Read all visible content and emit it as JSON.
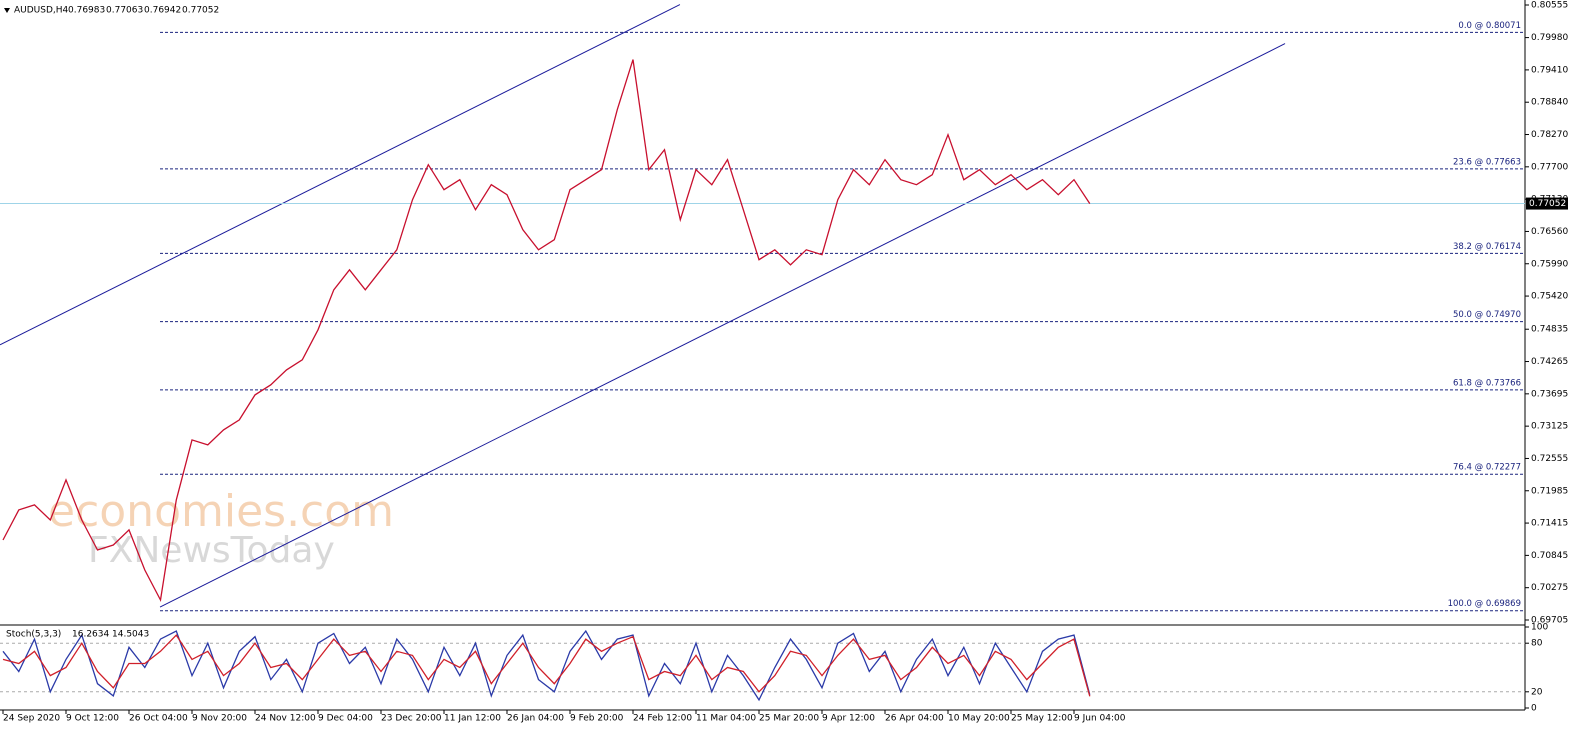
{
  "header": {
    "symbol": "AUDUSD,H4",
    "values": [
      0.76983,
      0.77063,
      0.76942,
      0.77052
    ]
  },
  "watermark": [
    "economies.com",
    "FXNewsToday"
  ],
  "chart_data": [
    {
      "type": "line",
      "categories": [
        "24 Sep 2020",
        null,
        null,
        null,
        "9 Oct 12:00",
        null,
        null,
        null,
        "26 Oct 04:00",
        null,
        null,
        null,
        "9 Nov 20:00",
        null,
        null,
        null,
        "24 Nov 12:00",
        null,
        null,
        null,
        "9 Dec 04:00",
        null,
        null,
        null,
        "23 Dec 20:00",
        null,
        null,
        null,
        "11 Jan 12:00",
        null,
        null,
        null,
        "26 Jan 04:00",
        null,
        null,
        null,
        "9 Feb 20:00",
        null,
        null,
        null,
        "24 Feb 12:00",
        null,
        null,
        null,
        "11 Mar 04:00",
        null,
        null,
        null,
        "25 Mar 20:00",
        null,
        null,
        null,
        "9 Apr 12:00",
        null,
        null,
        null,
        "26 Apr 04:00",
        null,
        null,
        null,
        "10 May 20:00",
        null,
        null,
        null,
        "25 May 12:00",
        null,
        null,
        null,
        "9 Jun 04:00",
        null
      ],
      "series": [
        {
          "color": "#c8102e",
          "values": [
            0.71117,
            0.71647,
            0.71735,
            0.7147,
            0.72176,
            0.7147,
            0.7094,
            0.71029,
            0.71294,
            0.70587,
            0.70058,
            0.71823,
            0.72883,
            0.72794,
            0.73059,
            0.73236,
            0.73677,
            0.73854,
            0.74118,
            0.74295,
            0.74825,
            0.75531,
            0.75884,
            0.75531,
            0.75884,
            0.76237,
            0.7712,
            0.77738,
            0.77296,
            0.77473,
            0.76943,
            0.77385,
            0.77208,
            0.7659,
            0.76237,
            0.76414,
            0.77296,
            0.77473,
            0.77649,
            0.78709,
            0.79592,
            0.77649,
            0.78003,
            0.76767,
            0.77649,
            0.77385,
            0.77826,
            0.76943,
            0.76061,
            0.76237,
            0.75972,
            0.76237,
            0.76149,
            0.7712,
            0.77649,
            0.77385,
            0.77826,
            0.77473,
            0.77385,
            0.77561,
            0.78267,
            0.77473,
            0.77649,
            0.77385,
            0.77561,
            0.77296,
            0.77473,
            0.77208,
            0.77473,
            0.77052
          ]
        }
      ],
      "ylim": [
        0.69705,
        0.80555
      ],
      "yticks": [
        0.80555,
        {
          "value": 0.7998,
          "label": "0.79980"
        },
        {
          "value": 0.7941,
          "label": "0.79410"
        },
        {
          "value": 0.7884,
          "label": "0.78840"
        },
        {
          "value": 0.7827,
          "label": "0.78270"
        },
        {
          "value": 0.777,
          "label": "0.77700"
        },
        {
          "value": 0.7713,
          "label": "0.77130"
        },
        {
          "value": 0.7656,
          "label": "0.76560"
        },
        {
          "value": 0.7599,
          "label": "0.75990"
        },
        {
          "value": 0.7542,
          "label": "0.75420"
        },
        0.74835,
        0.74265,
        0.73695,
        0.73125,
        0.72555,
        0.71985,
        0.71415,
        0.70845,
        0.70275,
        0.69705
      ],
      "levels": [
        {
          "value": 0.80071,
          "label": "0.0 @ 0.80071"
        },
        {
          "value": 0.77663,
          "label": "23.6 @ 0.77663"
        },
        {
          "value": 0.76174,
          "label": "38.2 @ 0.76174"
        },
        {
          "value": 0.7497,
          "label": "50.0 @ 0.74970"
        },
        {
          "value": 0.73766,
          "label": "61.8 @ 0.73766"
        },
        {
          "value": 0.72277,
          "label": "76.4 @ 0.72277"
        },
        {
          "value": 0.69869,
          "label": "100.0 @ 0.69869"
        }
      ],
      "level_color": "#1a237e",
      "trendlines": [
        {
          "color": "#1a1a9a",
          "x": [
            -0.19,
            42.98
          ],
          "y": [
            0.7456,
            0.80563
          ]
        },
        {
          "color": "#1a1a9a",
          "x": [
            9.97,
            81.4
          ],
          "y": [
            0.69934,
            0.79874
          ]
        }
      ],
      "current_price": 0.77052,
      "current_color": "#9fd4e8"
    },
    {
      "type": "line",
      "title": "Stoch(5,3,3)",
      "series": [
        {
          "color": "#2b3aa8",
          "values": [
            70,
            45,
            85,
            20,
            60,
            90,
            30,
            15,
            75,
            50,
            85,
            95,
            40,
            80,
            25,
            70,
            88,
            35,
            60,
            20,
            80,
            92,
            55,
            75,
            30,
            85,
            60,
            20,
            75,
            40,
            80,
            15,
            65,
            90,
            35,
            20,
            70,
            95,
            60,
            85,
            90,
            15,
            55,
            30,
            80,
            20,
            65,
            40,
            10,
            50,
            85,
            60,
            25,
            80,
            92,
            45,
            70,
            20,
            60,
            85,
            40,
            75,
            30,
            80,
            50,
            20,
            70,
            85,
            90,
            16.2634
          ]
        },
        {
          "color": "#d0202a",
          "values": [
            60,
            55,
            70,
            40,
            50,
            80,
            45,
            25,
            55,
            55,
            70,
            90,
            60,
            70,
            40,
            55,
            80,
            50,
            55,
            35,
            60,
            85,
            65,
            70,
            45,
            70,
            65,
            35,
            60,
            50,
            70,
            30,
            55,
            80,
            50,
            30,
            55,
            85,
            70,
            80,
            88,
            35,
            45,
            40,
            65,
            35,
            50,
            45,
            20,
            40,
            70,
            65,
            40,
            65,
            85,
            60,
            65,
            35,
            50,
            75,
            55,
            65,
            40,
            70,
            60,
            35,
            55,
            75,
            85,
            14.5043
          ]
        }
      ],
      "ylim": [
        0,
        100
      ],
      "yticks": [
        0,
        20,
        80,
        100
      ],
      "levels": [
        {
          "value": 20
        },
        {
          "value": 80
        }
      ]
    }
  ]
}
